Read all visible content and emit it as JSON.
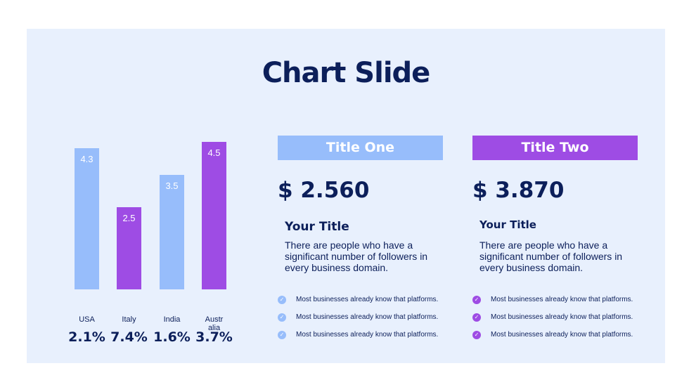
{
  "slide": {
    "title": "Chart Slide"
  },
  "colors": {
    "blue": "#97bdfb",
    "purple": "#9e4ce4",
    "navy": "#0c1f5a"
  },
  "chart_data": {
    "type": "bar",
    "categories": [
      "USA",
      "Italy",
      "India",
      "Australia"
    ],
    "category_labels": [
      [
        "USA"
      ],
      [
        "Italy"
      ],
      [
        "India"
      ],
      [
        "Austr",
        "alia"
      ]
    ],
    "values": [
      4.3,
      2.5,
      3.5,
      4.5
    ],
    "value_labels": [
      "4.3",
      "2.5",
      "3.5",
      "4.5"
    ],
    "bar_colors": [
      "#97bdfb",
      "#9e4ce4",
      "#97bdfb",
      "#9e4ce4"
    ],
    "percentages": [
      "2.1%",
      "7.4%",
      "1.6%",
      "3.7%"
    ],
    "ylim": [
      0,
      4.5
    ],
    "grid": false
  },
  "cards": [
    {
      "header": "Title One",
      "accent": "#97bdfb",
      "amount": "$ 2.560",
      "subtitle": "Your Title",
      "description": "There are people who have a significant number of followers in every business domain.",
      "bullets": [
        "Most businesses already know that platforms.",
        "Most businesses already know that platforms.",
        "Most businesses already know that platforms."
      ],
      "bullet_icon": "check-circle-icon"
    },
    {
      "header": "Title Two",
      "accent": "#9e4ce4",
      "amount": "$ 3.870",
      "subtitle": "Your Title",
      "description": "There are people who have a significant number of followers in every business domain.",
      "bullets": [
        "Most businesses already know that platforms.",
        "Most businesses already know that platforms.",
        "Most businesses already know that platforms."
      ],
      "bullet_icon": "check-circle-icon"
    }
  ]
}
